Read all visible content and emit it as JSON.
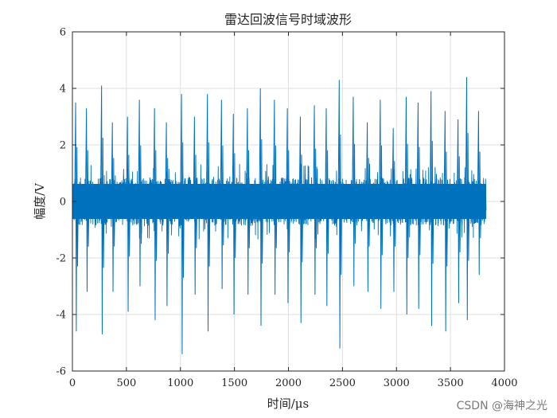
{
  "chart_data": {
    "type": "line",
    "title": "雷达回波信号时域波形",
    "xlabel": "时间/μs",
    "ylabel": "幅度/V",
    "xlim": [
      0,
      4000
    ],
    "ylim": [
      -6,
      6
    ],
    "xticks": [
      0,
      500,
      1000,
      1500,
      2000,
      2500,
      3000,
      3500,
      4000
    ],
    "yticks": [
      -6,
      -4,
      -2,
      0,
      2,
      4,
      6
    ],
    "grid": true,
    "line_color": "#0072BD",
    "series": [
      {
        "x_range": [
          0,
          3830
        ],
        "noise_band": [
          -1.0,
          1.0
        ],
        "pulses": [
          {
            "x": 30,
            "max": 3.5,
            "min": -4.6
          },
          {
            "x": 130,
            "max": 3.3,
            "min": -3.2
          },
          {
            "x": 270,
            "max": 4.1,
            "min": -4.7
          },
          {
            "x": 370,
            "max": 2.8,
            "min": -3.2
          },
          {
            "x": 510,
            "max": 3.0,
            "min": -3.9
          },
          {
            "x": 620,
            "max": 3.6,
            "min": -3.0
          },
          {
            "x": 760,
            "max": 3.3,
            "min": -4.2
          },
          {
            "x": 870,
            "max": 2.8,
            "min": -3.7
          },
          {
            "x": 1010,
            "max": 3.8,
            "min": -5.4
          },
          {
            "x": 1130,
            "max": 3.0,
            "min": -3.3
          },
          {
            "x": 1250,
            "max": 3.8,
            "min": -4.6
          },
          {
            "x": 1380,
            "max": 3.6,
            "min": -3.1
          },
          {
            "x": 1490,
            "max": 3.1,
            "min": -4.0
          },
          {
            "x": 1620,
            "max": 3.3,
            "min": -3.3
          },
          {
            "x": 1740,
            "max": 4.0,
            "min": -4.4
          },
          {
            "x": 1870,
            "max": 3.6,
            "min": -3.3
          },
          {
            "x": 1990,
            "max": 3.3,
            "min": -3.6
          },
          {
            "x": 2110,
            "max": 3.0,
            "min": -4.3
          },
          {
            "x": 2240,
            "max": 3.4,
            "min": -3.3
          },
          {
            "x": 2350,
            "max": 3.3,
            "min": -3.7
          },
          {
            "x": 2470,
            "max": 4.3,
            "min": -5.2
          },
          {
            "x": 2600,
            "max": 3.7,
            "min": -3.0
          },
          {
            "x": 2730,
            "max": 2.8,
            "min": -3.2
          },
          {
            "x": 2850,
            "max": 3.6,
            "min": -3.8
          },
          {
            "x": 2970,
            "max": 2.6,
            "min": -3.2
          },
          {
            "x": 3090,
            "max": 3.7,
            "min": -4.0
          },
          {
            "x": 3200,
            "max": 3.5,
            "min": -3.8
          },
          {
            "x": 3320,
            "max": 3.9,
            "min": -4.4
          },
          {
            "x": 3450,
            "max": 3.2,
            "min": -4.6
          },
          {
            "x": 3570,
            "max": 2.9,
            "min": -3.6
          },
          {
            "x": 3650,
            "max": 4.4,
            "min": -4.2
          },
          {
            "x": 3760,
            "max": 3.2,
            "min": -2.6
          }
        ]
      }
    ]
  },
  "watermark": "CSDN @海神之光"
}
